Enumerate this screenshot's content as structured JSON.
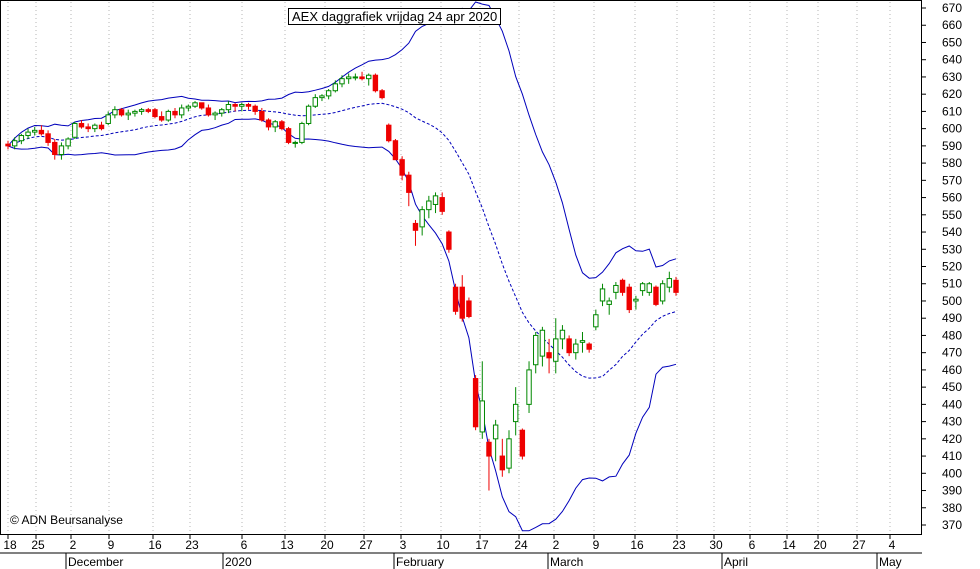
{
  "header": {
    "title": "AEX daggrafiek vrijdag 24 apr 2020"
  },
  "footer": {
    "copyright": "© ADN Beursanalyse"
  },
  "chart_data": {
    "type": "candlestick",
    "title": "AEX daggrafiek vrijdag 24 apr 2020",
    "ylim": [
      365,
      675
    ],
    "y_ticks": [
      370,
      380,
      390,
      400,
      410,
      420,
      430,
      440,
      450,
      460,
      470,
      480,
      490,
      500,
      510,
      520,
      530,
      540,
      550,
      560,
      570,
      580,
      590,
      600,
      610,
      620,
      630,
      640,
      650,
      660,
      670
    ],
    "x_day_labels": [
      "18",
      "25",
      "2",
      "9",
      "16",
      "23",
      "6",
      "13",
      "20",
      "27",
      "3",
      "10",
      "17",
      "24",
      "2",
      "9",
      "16",
      "23",
      "30",
      "6",
      "14",
      "20",
      "27",
      "4"
    ],
    "x_month_labels": [
      "December",
      "2020",
      "February",
      "March",
      "April",
      "May"
    ],
    "grid": "vertical dotted at day labels",
    "colors": {
      "up": "#008800",
      "down": "#ee0000",
      "bands": "#0000bb",
      "grid": "#b4b4b4"
    },
    "indicators": [
      "upper Bollinger band",
      "20-day moving average (dashed)",
      "lower Bollinger band"
    ],
    "candles": [
      {
        "o": 591,
        "h": 593,
        "l": 588,
        "c": 590
      },
      {
        "o": 590,
        "h": 595,
        "l": 588,
        "c": 593
      },
      {
        "o": 593,
        "h": 597,
        "l": 591,
        "c": 596
      },
      {
        "o": 596,
        "h": 600,
        "l": 594,
        "c": 598
      },
      {
        "o": 598,
        "h": 601,
        "l": 596,
        "c": 599
      },
      {
        "o": 599,
        "h": 602,
        "l": 596,
        "c": 597
      },
      {
        "o": 597,
        "h": 599,
        "l": 590,
        "c": 592
      },
      {
        "o": 592,
        "h": 594,
        "l": 582,
        "c": 585
      },
      {
        "o": 585,
        "h": 592,
        "l": 582,
        "c": 590
      },
      {
        "o": 590,
        "h": 595,
        "l": 588,
        "c": 594
      },
      {
        "o": 595,
        "h": 604,
        "l": 594,
        "c": 603
      },
      {
        "o": 603,
        "h": 605,
        "l": 600,
        "c": 601
      },
      {
        "o": 601,
        "h": 603,
        "l": 598,
        "c": 600
      },
      {
        "o": 600,
        "h": 603,
        "l": 598,
        "c": 602
      },
      {
        "o": 602,
        "h": 604,
        "l": 599,
        "c": 600
      },
      {
        "o": 603,
        "h": 610,
        "l": 602,
        "c": 608
      },
      {
        "o": 608,
        "h": 613,
        "l": 606,
        "c": 611
      },
      {
        "o": 611,
        "h": 612,
        "l": 607,
        "c": 608
      },
      {
        "o": 608,
        "h": 611,
        "l": 605,
        "c": 609
      },
      {
        "o": 609,
        "h": 611,
        "l": 607,
        "c": 610
      },
      {
        "o": 610,
        "h": 612,
        "l": 608,
        "c": 611
      },
      {
        "o": 611,
        "h": 612,
        "l": 609,
        "c": 610
      },
      {
        "o": 611,
        "h": 612,
        "l": 606,
        "c": 607
      },
      {
        "o": 607,
        "h": 610,
        "l": 604,
        "c": 605
      },
      {
        "o": 605,
        "h": 611,
        "l": 604,
        "c": 610
      },
      {
        "o": 610,
        "h": 612,
        "l": 606,
        "c": 608
      },
      {
        "o": 608,
        "h": 614,
        "l": 606,
        "c": 612
      },
      {
        "o": 612,
        "h": 614,
        "l": 610,
        "c": 613
      },
      {
        "o": 613,
        "h": 616,
        "l": 612,
        "c": 615
      },
      {
        "o": 615,
        "h": 615,
        "l": 611,
        "c": 612
      },
      {
        "o": 612,
        "h": 614,
        "l": 607,
        "c": 608
      },
      {
        "o": 608,
        "h": 610,
        "l": 605,
        "c": 609
      },
      {
        "o": 609,
        "h": 612,
        "l": 607,
        "c": 611
      },
      {
        "o": 611,
        "h": 616,
        "l": 609,
        "c": 614
      },
      {
        "o": 614,
        "h": 615,
        "l": 610,
        "c": 613
      },
      {
        "o": 613,
        "h": 615,
        "l": 610,
        "c": 614
      },
      {
        "o": 614,
        "h": 615,
        "l": 611,
        "c": 613
      },
      {
        "o": 613,
        "h": 614,
        "l": 608,
        "c": 610
      },
      {
        "o": 610,
        "h": 612,
        "l": 604,
        "c": 605
      },
      {
        "o": 605,
        "h": 606,
        "l": 599,
        "c": 601
      },
      {
        "o": 601,
        "h": 605,
        "l": 598,
        "c": 604
      },
      {
        "o": 604,
        "h": 605,
        "l": 599,
        "c": 600
      },
      {
        "o": 600,
        "h": 601,
        "l": 591,
        "c": 592
      },
      {
        "o": 592,
        "h": 593,
        "l": 589,
        "c": 592
      },
      {
        "o": 592,
        "h": 604,
        "l": 591,
        "c": 603
      },
      {
        "o": 603,
        "h": 614,
        "l": 602,
        "c": 613
      },
      {
        "o": 613,
        "h": 620,
        "l": 612,
        "c": 618
      },
      {
        "o": 618,
        "h": 620,
        "l": 616,
        "c": 619
      },
      {
        "o": 619,
        "h": 623,
        "l": 617,
        "c": 622
      },
      {
        "o": 622,
        "h": 628,
        "l": 621,
        "c": 626
      },
      {
        "o": 626,
        "h": 631,
        "l": 624,
        "c": 629
      },
      {
        "o": 629,
        "h": 632,
        "l": 626,
        "c": 630
      },
      {
        "o": 630,
        "h": 632,
        "l": 628,
        "c": 630
      },
      {
        "o": 630,
        "h": 633,
        "l": 628,
        "c": 629
      },
      {
        "o": 629,
        "h": 632,
        "l": 625,
        "c": 631
      },
      {
        "o": 631,
        "h": 632,
        "l": 621,
        "c": 622
      },
      {
        "o": 622,
        "h": 623,
        "l": 617,
        "c": 618
      },
      {
        "o": 602,
        "h": 603,
        "l": 592,
        "c": 593
      },
      {
        "o": 593,
        "h": 594,
        "l": 582,
        "c": 582
      },
      {
        "o": 582,
        "h": 584,
        "l": 570,
        "c": 573
      },
      {
        "o": 573,
        "h": 575,
        "l": 555,
        "c": 563
      },
      {
        "o": 545,
        "h": 547,
        "l": 532,
        "c": 541
      },
      {
        "o": 543,
        "h": 555,
        "l": 538,
        "c": 553
      },
      {
        "o": 553,
        "h": 561,
        "l": 548,
        "c": 558
      },
      {
        "o": 556,
        "h": 563,
        "l": 551,
        "c": 561
      },
      {
        "o": 560,
        "h": 563,
        "l": 550,
        "c": 552
      },
      {
        "o": 540,
        "h": 541,
        "l": 528,
        "c": 530
      },
      {
        "o": 508,
        "h": 510,
        "l": 492,
        "c": 494
      },
      {
        "o": 508,
        "h": 515,
        "l": 488,
        "c": 490
      },
      {
        "o": 500,
        "h": 502,
        "l": 490,
        "c": 491
      },
      {
        "o": 455,
        "h": 457,
        "l": 425,
        "c": 427
      },
      {
        "o": 424,
        "h": 465,
        "l": 420,
        "c": 442
      },
      {
        "o": 418,
        "h": 420,
        "l": 390,
        "c": 410
      },
      {
        "o": 420,
        "h": 431,
        "l": 407,
        "c": 428
      },
      {
        "o": 410,
        "h": 420,
        "l": 398,
        "c": 402
      },
      {
        "o": 403,
        "h": 425,
        "l": 400,
        "c": 420
      },
      {
        "o": 430,
        "h": 450,
        "l": 422,
        "c": 440
      },
      {
        "o": 425,
        "h": 426,
        "l": 408,
        "c": 410
      },
      {
        "o": 440,
        "h": 465,
        "l": 435,
        "c": 460
      },
      {
        "o": 463,
        "h": 482,
        "l": 458,
        "c": 480
      },
      {
        "o": 468,
        "h": 485,
        "l": 462,
        "c": 483
      },
      {
        "o": 470,
        "h": 478,
        "l": 458,
        "c": 467
      },
      {
        "o": 465,
        "h": 490,
        "l": 458,
        "c": 478
      },
      {
        "o": 478,
        "h": 486,
        "l": 472,
        "c": 483
      },
      {
        "o": 478,
        "h": 480,
        "l": 468,
        "c": 470
      },
      {
        "o": 470,
        "h": 478,
        "l": 466,
        "c": 475
      },
      {
        "o": 476,
        "h": 482,
        "l": 470,
        "c": 477
      },
      {
        "o": 475,
        "h": 476,
        "l": 470,
        "c": 472
      },
      {
        "o": 485,
        "h": 495,
        "l": 483,
        "c": 492
      },
      {
        "o": 500,
        "h": 510,
        "l": 497,
        "c": 507
      },
      {
        "o": 498,
        "h": 502,
        "l": 492,
        "c": 500
      },
      {
        "o": 505,
        "h": 511,
        "l": 501,
        "c": 509
      },
      {
        "o": 512,
        "h": 513,
        "l": 503,
        "c": 505
      },
      {
        "o": 508,
        "h": 510,
        "l": 493,
        "c": 495
      },
      {
        "o": 500,
        "h": 503,
        "l": 495,
        "c": 501
      },
      {
        "o": 506,
        "h": 511,
        "l": 503,
        "c": 510
      },
      {
        "o": 505,
        "h": 511,
        "l": 503,
        "c": 510
      },
      {
        "o": 508,
        "h": 509,
        "l": 497,
        "c": 498
      },
      {
        "o": 500,
        "h": 512,
        "l": 498,
        "c": 510
      },
      {
        "o": 508,
        "h": 517,
        "l": 505,
        "c": 513
      },
      {
        "o": 512,
        "h": 514,
        "l": 503,
        "c": 505
      }
    ]
  }
}
